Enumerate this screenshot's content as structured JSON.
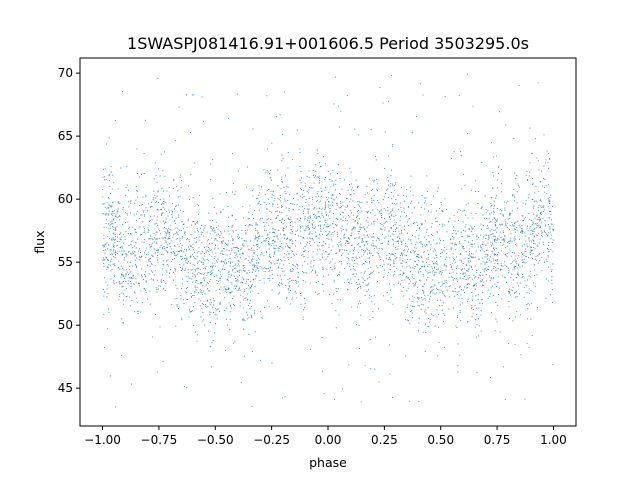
{
  "chart_data": {
    "type": "scatter",
    "title": "1SWASPJ081416.91+001606.5 Period 3503295.0s",
    "xlabel": "phase",
    "ylabel": "flux",
    "xlim": [
      -1.1,
      1.1
    ],
    "ylim": [
      42,
      71.2
    ],
    "xticks": [
      {
        "value": -1.0,
        "label": "−1.00"
      },
      {
        "value": -0.75,
        "label": "−0.75"
      },
      {
        "value": -0.5,
        "label": "−0.50"
      },
      {
        "value": -0.25,
        "label": "−0.25"
      },
      {
        "value": 0.0,
        "label": "0.00"
      },
      {
        "value": 0.25,
        "label": "0.25"
      },
      {
        "value": 0.5,
        "label": "0.50"
      },
      {
        "value": 0.75,
        "label": "0.75"
      },
      {
        "value": 1.0,
        "label": "1.00"
      }
    ],
    "yticks": [
      {
        "value": 45,
        "label": "45"
      },
      {
        "value": 50,
        "label": "50"
      },
      {
        "value": 55,
        "label": "55"
      },
      {
        "value": 60,
        "label": "60"
      },
      {
        "value": 65,
        "label": "65"
      },
      {
        "value": 70,
        "label": "70"
      }
    ],
    "grid": false,
    "legend": false,
    "marker_color": "#1f77b4",
    "trend": {
      "x": [
        -1.0,
        -0.95,
        -0.9,
        -0.85,
        -0.8,
        -0.75,
        -0.7,
        -0.65,
        -0.6,
        -0.55,
        -0.5,
        -0.45,
        -0.4,
        -0.35,
        -0.3,
        -0.25,
        -0.2,
        -0.15,
        -0.1,
        -0.05,
        0.0,
        0.05,
        0.1,
        0.15,
        0.2,
        0.25,
        0.3,
        0.35,
        0.4,
        0.45,
        0.5,
        0.55,
        0.6,
        0.65,
        0.7,
        0.75,
        0.8,
        0.85,
        0.9,
        0.95,
        1.0
      ],
      "y": [
        57.5,
        57.3,
        56.0,
        55.8,
        56.5,
        57.2,
        57.0,
        56.0,
        55.0,
        54.5,
        54.8,
        55.5,
        54.5,
        54.0,
        56.5,
        57.5,
        56.5,
        56.0,
        57.0,
        58.5,
        58.0,
        57.5,
        57.0,
        56.5,
        57.0,
        57.5,
        57.3,
        56.0,
        55.0,
        54.5,
        54.8,
        55.3,
        55.0,
        54.5,
        56.0,
        57.5,
        56.5,
        56.0,
        57.0,
        58.5,
        57.5
      ]
    },
    "scatter_spread": 2.2,
    "outlier_range": [
      43.5,
      70
    ]
  }
}
